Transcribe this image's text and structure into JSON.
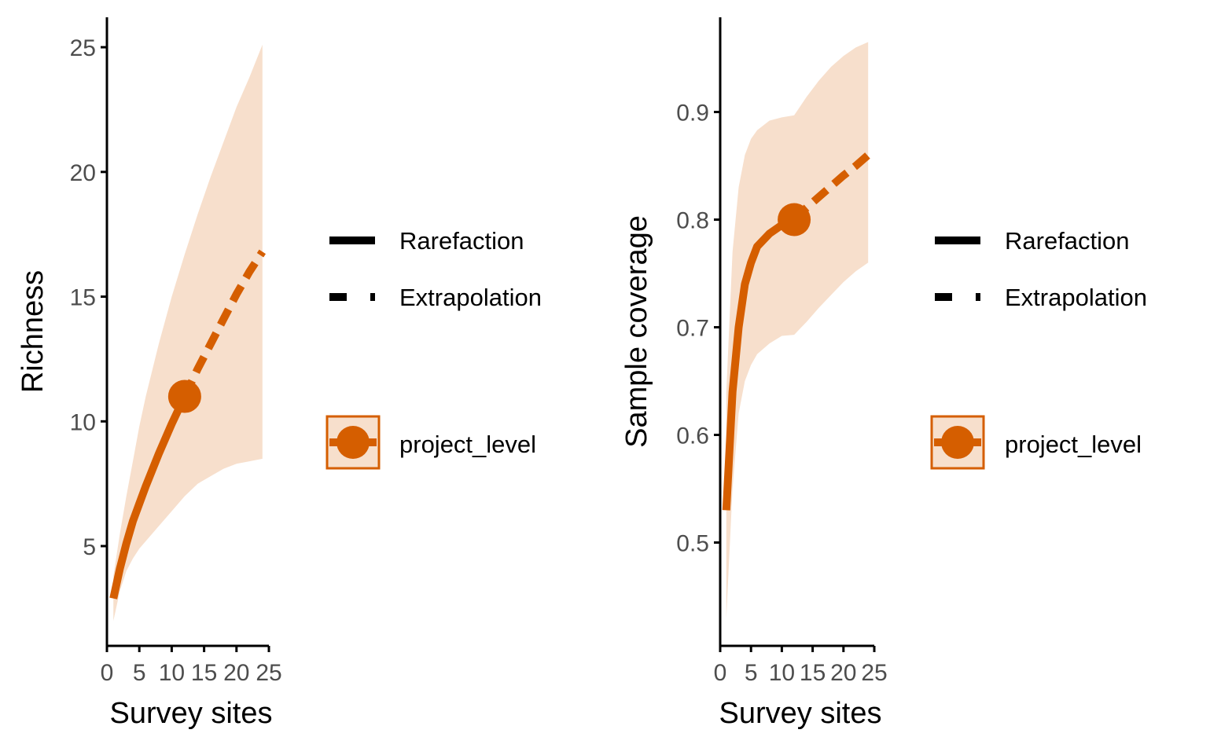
{
  "colors": {
    "curve": "#D55E00",
    "band": "#F7DFCC",
    "axis": "#000000",
    "tick_text": "#4d4d4d"
  },
  "legend": {
    "linetype_entries": [
      "Rarefaction",
      "Extrapolation"
    ],
    "group_entry": "project_level"
  },
  "chart_data": [
    {
      "type": "line",
      "xlabel": "Survey sites",
      "ylabel": "Richness",
      "xlim": [
        0,
        25
      ],
      "ylim": [
        1,
        26.2
      ],
      "xticks": [
        0,
        5,
        10,
        15,
        20,
        25
      ],
      "xtick_labels": [
        "0",
        "5",
        "10",
        "15",
        "20",
        "25"
      ],
      "yticks": [
        5,
        10,
        15,
        20,
        25
      ],
      "ytick_labels": [
        "5",
        "10",
        "15",
        "20",
        "25"
      ],
      "grid": false,
      "legend_position": "right",
      "series": [
        {
          "name": "project_level",
          "observed": {
            "x": 12,
            "y": 11
          },
          "rarefaction": {
            "x": [
              1,
              2,
              3,
              4,
              5,
              6,
              8,
              10,
              12
            ],
            "y": [
              2.9,
              4.1,
              5.1,
              6.0,
              6.7,
              7.4,
              8.7,
              9.9,
              11
            ]
          },
          "extrapolation": {
            "x": [
              12,
              14,
              16,
              18,
              20,
              22,
              24
            ],
            "y": [
              11,
              12.1,
              13.1,
              14.1,
              15.1,
              16.0,
              16.8
            ]
          },
          "ci_x": [
            1,
            2,
            3,
            4,
            5,
            6,
            8,
            10,
            12,
            14,
            16,
            18,
            20,
            22,
            24
          ],
          "ci_lower": [
            2.0,
            3.2,
            4.0,
            4.5,
            4.9,
            5.2,
            5.8,
            6.4,
            7.0,
            7.5,
            7.8,
            8.1,
            8.3,
            8.4,
            8.5
          ],
          "ci_upper": [
            3.8,
            5.5,
            7.0,
            8.4,
            9.8,
            11.0,
            13.1,
            15.0,
            16.7,
            18.3,
            19.8,
            21.2,
            22.6,
            23.8,
            25.1
          ]
        }
      ]
    },
    {
      "type": "line",
      "xlabel": "Survey sites",
      "ylabel": "Sample coverage",
      "xlim": [
        0,
        25
      ],
      "ylim": [
        0.404,
        0.988
      ],
      "xticks": [
        0,
        5,
        10,
        15,
        20,
        25
      ],
      "xtick_labels": [
        "0",
        "5",
        "10",
        "15",
        "20",
        "25"
      ],
      "yticks": [
        0.5,
        0.6,
        0.7,
        0.8,
        0.9
      ],
      "ytick_labels": [
        "0.5",
        "0.6",
        "0.7",
        "0.8",
        "0.9"
      ],
      "grid": false,
      "legend_position": "right",
      "series": [
        {
          "name": "project_level",
          "observed": {
            "x": 12,
            "y": 0.8
          },
          "rarefaction": {
            "x": [
              1,
              2,
              3,
              4,
              5,
              6,
              8,
              10,
              12
            ],
            "y": [
              0.53,
              0.64,
              0.7,
              0.74,
              0.76,
              0.775,
              0.787,
              0.795,
              0.8
            ]
          },
          "extrapolation": {
            "x": [
              12,
              14,
              16,
              18,
              20,
              22,
              24
            ],
            "y": [
              0.8,
              0.811,
              0.821,
              0.831,
              0.841,
              0.85,
              0.86
            ]
          },
          "ci_x": [
            1,
            2,
            3,
            4,
            5,
            6,
            8,
            10,
            12,
            14,
            16,
            18,
            20,
            22,
            24
          ],
          "ci_lower": [
            0.43,
            0.55,
            0.62,
            0.65,
            0.665,
            0.675,
            0.685,
            0.692,
            0.693,
            0.705,
            0.718,
            0.73,
            0.742,
            0.752,
            0.76
          ],
          "ci_upper": [
            0.64,
            0.77,
            0.83,
            0.86,
            0.875,
            0.883,
            0.892,
            0.895,
            0.897,
            0.914,
            0.929,
            0.942,
            0.952,
            0.96,
            0.965
          ]
        }
      ]
    }
  ]
}
